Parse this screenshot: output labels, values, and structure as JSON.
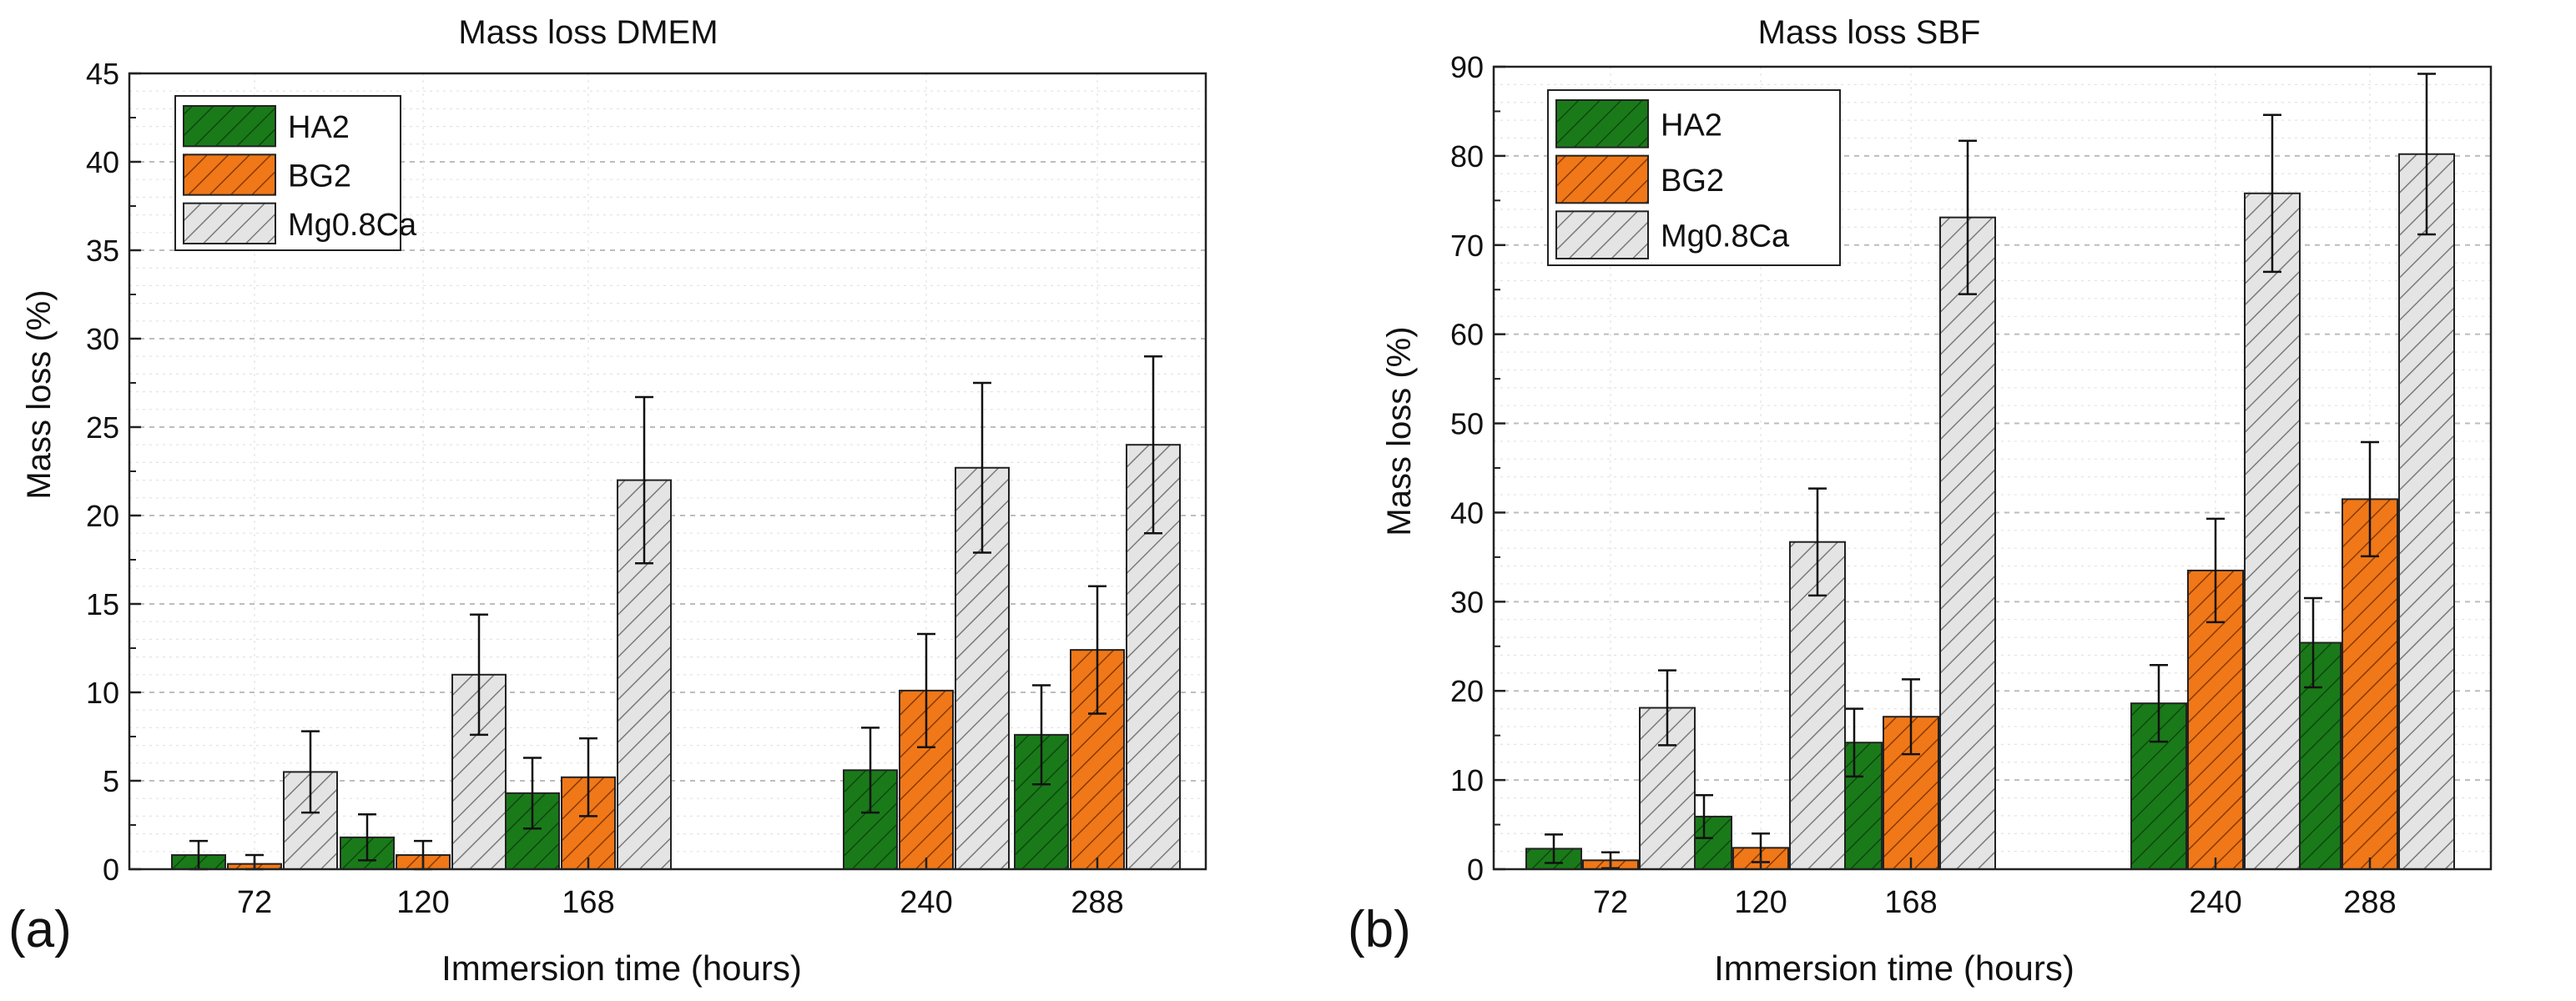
{
  "figure": {
    "panel_labels": [
      "(a)",
      "(b)"
    ]
  },
  "colors": {
    "HA2": "#1a7a1a",
    "BG2": "#f07818",
    "Mg0.8Ca": "#e0e0e0",
    "grid": "#c8c8c8",
    "axis": "#222222"
  },
  "chart_data": [
    {
      "type": "bar",
      "title": "Mass loss DMEM",
      "xlabel": "Immersion time (hours)",
      "ylabel": "Mass loss (%)",
      "ylim": [
        0,
        45
      ],
      "yticks": [
        0,
        5,
        10,
        15,
        20,
        25,
        30,
        35,
        40,
        45
      ],
      "categories": [
        "72",
        "120",
        "168",
        "240",
        "288"
      ],
      "legend_position": "top-left",
      "grid": true,
      "series": [
        {
          "name": "HA2",
          "values": [
            0.8,
            1.8,
            4.3,
            5.6,
            7.6
          ],
          "errors": [
            0.8,
            1.3,
            2.0,
            2.4,
            2.8
          ]
        },
        {
          "name": "BG2",
          "values": [
            0.3,
            0.8,
            5.2,
            10.1,
            12.4
          ],
          "errors": [
            0.5,
            0.8,
            2.2,
            3.2,
            3.6
          ]
        },
        {
          "name": "Mg0.8Ca",
          "values": [
            5.5,
            11.0,
            22.0,
            22.7,
            24.0
          ],
          "errors": [
            2.3,
            3.4,
            4.7,
            4.8,
            5.0
          ]
        }
      ]
    },
    {
      "type": "bar",
      "title": "Mass loss SBF",
      "xlabel": "Immersion time (hours)",
      "ylabel": "Mass loss (%)",
      "ylim": [
        0,
        90
      ],
      "yticks": [
        0,
        10,
        20,
        30,
        40,
        50,
        60,
        70,
        80,
        90
      ],
      "categories": [
        "72",
        "120",
        "168",
        "240",
        "288"
      ],
      "legend_position": "top-left",
      "grid": true,
      "series": [
        {
          "name": "HA2",
          "values": [
            2.3,
            5.9,
            14.2,
            18.6,
            25.4
          ],
          "errors": [
            1.6,
            2.4,
            3.8,
            4.3,
            5.0
          ]
        },
        {
          "name": "BG2",
          "values": [
            1.0,
            2.4,
            17.1,
            33.5,
            41.5
          ],
          "errors": [
            0.9,
            1.6,
            4.2,
            5.8,
            6.4
          ]
        },
        {
          "name": "Mg0.8Ca",
          "values": [
            18.1,
            36.7,
            73.1,
            75.8,
            80.2
          ],
          "errors": [
            4.2,
            6.0,
            8.6,
            8.8,
            9.0
          ]
        }
      ]
    }
  ]
}
